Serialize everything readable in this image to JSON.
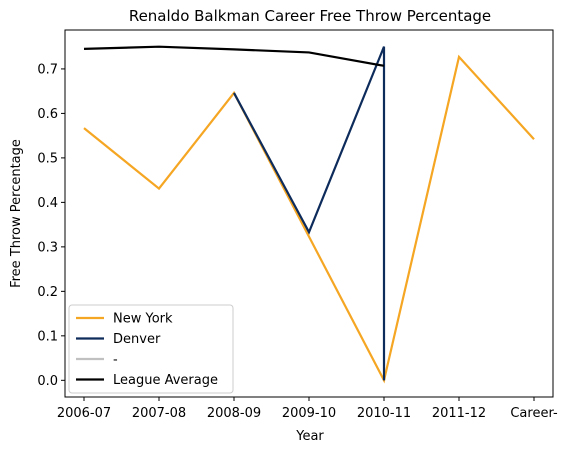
{
  "chart_data": {
    "type": "line",
    "title": "Renaldo Balkman Career Free Throw Percentage",
    "xlabel": "Year",
    "ylabel": "Free Throw Percentage",
    "categories": [
      "2006-07",
      "2007-08",
      "2008-09",
      "2009-10",
      "2010-11",
      "2011-12",
      "Career-"
    ],
    "yticks": [
      "0.0",
      "0.1",
      "0.2",
      "0.3",
      "0.4",
      "0.5",
      "0.6",
      "0.7"
    ],
    "ylim": [
      -0.0375,
      0.7875
    ],
    "grid": false,
    "legend_position": "lower-left",
    "series": [
      {
        "name": "New York",
        "color": "#f5a623",
        "points": [
          {
            "x": "2006-07",
            "y": 0.567
          },
          {
            "x": "2007-08",
            "y": 0.431
          },
          {
            "x": "2008-09",
            "y": 0.646
          },
          {
            "x": "2010-11",
            "y": 0.0
          },
          {
            "x": "2011-12",
            "y": 0.727
          },
          {
            "x": "Career-",
            "y": 0.542
          }
        ]
      },
      {
        "name": "Denver",
        "color": "#0d2b5b",
        "points": [
          {
            "x": "2008-09",
            "y": 0.646
          },
          {
            "x": "2009-10",
            "y": 0.333
          },
          {
            "x": "2010-11",
            "y": 0.75
          },
          {
            "x": "2010-11",
            "y": 0.0
          }
        ]
      },
      {
        "name": "-",
        "color": "#c0c0c0",
        "points": []
      },
      {
        "name": "League Average",
        "color": "#000000",
        "points": [
          {
            "x": "2006-07",
            "y": 0.745
          },
          {
            "x": "2007-08",
            "y": 0.75
          },
          {
            "x": "2008-09",
            "y": 0.744
          },
          {
            "x": "2009-10",
            "y": 0.737
          },
          {
            "x": "2010-11",
            "y": 0.707
          }
        ]
      }
    ]
  }
}
